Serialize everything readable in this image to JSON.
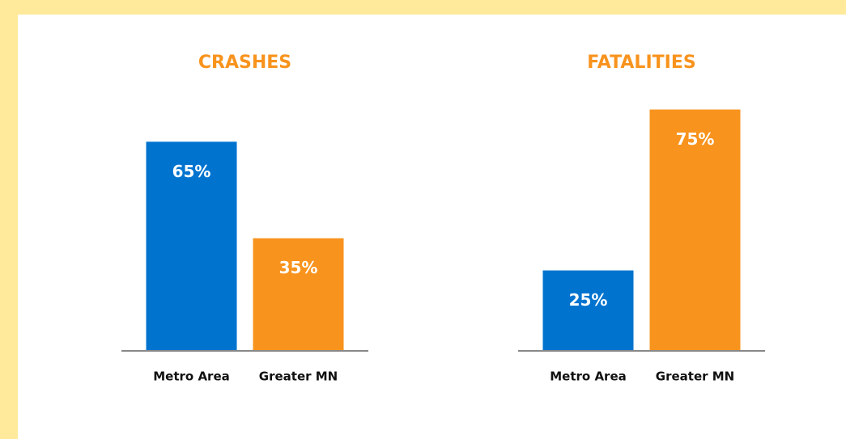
{
  "chart_data": [
    {
      "type": "bar",
      "title": "CRASHES",
      "categories": [
        "Metro Area",
        "Greater MN"
      ],
      "values": [
        65,
        35
      ],
      "value_labels": [
        "65%",
        "35%"
      ],
      "colors": [
        "#0073cf",
        "#f8931d"
      ],
      "ylim": [
        0,
        100
      ]
    },
    {
      "type": "bar",
      "title": "FATALITIES",
      "categories": [
        "Metro Area",
        "Greater MN"
      ],
      "values": [
        25,
        75
      ],
      "value_labels": [
        "25%",
        "75%"
      ],
      "colors": [
        "#0073cf",
        "#f8931d"
      ],
      "ylim": [
        0,
        100
      ]
    }
  ]
}
